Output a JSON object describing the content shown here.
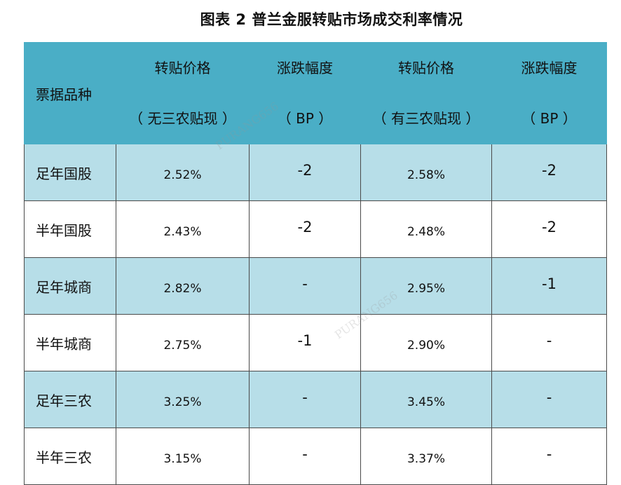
{
  "title": "图表 2  普兰金服转贴市场成交利率情况",
  "header": {
    "col0": "票据品种",
    "col1_line1": "转贴价格",
    "col1_line2": "（ 无三农贴现 ）",
    "col2_line1": "涨跌幅度",
    "col2_line2": "（ BP ）",
    "col3_line1": "转贴价格",
    "col3_line2": "（ 有三农贴现 ）",
    "col4_line1": "涨跌幅度",
    "col4_line2": "（ BP ）"
  },
  "rows": [
    {
      "name": "足年国股",
      "price_no": "2.52%",
      "chg_no": "-2",
      "price_yes": "2.58%",
      "chg_yes": "-2"
    },
    {
      "name": "半年国股",
      "price_no": "2.43%",
      "chg_no": "-2",
      "price_yes": "2.48%",
      "chg_yes": "-2"
    },
    {
      "name": "足年城商",
      "price_no": "2.82%",
      "chg_no": "-",
      "price_yes": "2.95%",
      "chg_yes": "-1"
    },
    {
      "name": "半年城商",
      "price_no": "2.75%",
      "chg_no": "-1",
      "price_yes": "2.90%",
      "chg_yes": "-"
    },
    {
      "name": "足年三农",
      "price_no": "3.25%",
      "chg_no": "-",
      "price_yes": "3.45%",
      "chg_yes": "-"
    },
    {
      "name": "半年三农",
      "price_no": "3.15%",
      "chg_no": "-",
      "price_yes": "3.37%",
      "chg_yes": "-"
    }
  ],
  "watermark": "PURANG656",
  "colors": {
    "header_bg": "#4aaec6",
    "band_bg": "#b7dee8",
    "border": "#4a4a4a"
  }
}
